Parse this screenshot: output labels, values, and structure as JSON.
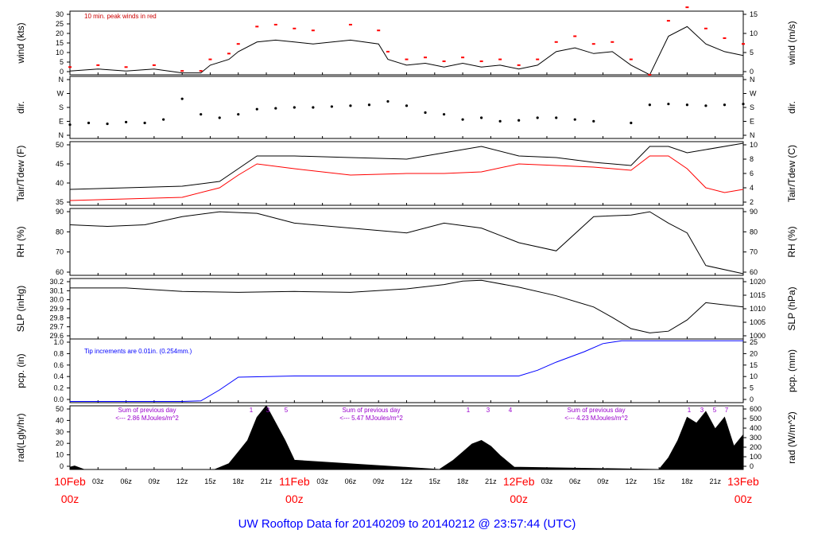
{
  "colors": {
    "frame": "#000000",
    "peak": "#ff0000",
    "dewpoint": "#ff0000",
    "precip": "#0000ff",
    "annotation_purple": "#9900cc",
    "time_red": "#ff0000",
    "footer_blue": "#0000ff",
    "note_red": "#cc0000"
  },
  "footer_title": "UW Rooftop Data for 20140209  to  20140212 @ 23:57:44  (UTC)",
  "time_axis": {
    "hour_ticks": [
      "03z",
      "06z",
      "09z",
      "12z",
      "15z",
      "18z",
      "21z",
      "03z",
      "06z",
      "09z",
      "12z",
      "15z",
      "18z",
      "21z",
      "03z",
      "06z",
      "09z",
      "12z",
      "15z",
      "18z",
      "21z"
    ],
    "day_labels": [
      {
        "date": "10Feb",
        "hour": "00z"
      },
      {
        "date": "11Feb",
        "hour": "00z"
      },
      {
        "date": "12Feb",
        "hour": "00z"
      },
      {
        "date": "13Feb",
        "hour": "00z"
      }
    ]
  },
  "chart_data": [
    {
      "type": "line",
      "panel": "wind",
      "ylabel_left": "wind (kts)",
      "ylabel_right": "wind (m/s)",
      "yticks_left": [
        "0",
        "5",
        "10",
        "15",
        "20",
        "25",
        "30"
      ],
      "yticks_right": [
        "0",
        "5",
        "10",
        "15"
      ],
      "ylim": [
        0,
        33
      ],
      "annotation": "10 min. peak winds in red",
      "series": [
        {
          "name": "wind",
          "color": "#000000",
          "x_hours": [
            0,
            3,
            6,
            9,
            12,
            14,
            15,
            17,
            18,
            20,
            22,
            24,
            26,
            30,
            33,
            34,
            36,
            38,
            40,
            42,
            44,
            46,
            48,
            50,
            52,
            54,
            56,
            58,
            60,
            62,
            64,
            66,
            68,
            70,
            72
          ],
          "values": [
            2,
            3,
            2,
            3,
            1,
            1,
            5,
            8,
            12,
            17,
            18,
            17,
            16,
            18,
            16,
            8,
            5,
            6,
            4,
            6,
            4,
            5,
            3,
            5,
            12,
            14,
            11,
            12,
            5,
            0,
            20,
            25,
            16,
            12,
            10
          ]
        },
        {
          "name": "peak",
          "color": "#ff0000",
          "x_hours": [
            0,
            3,
            6,
            9,
            12,
            14,
            15,
            17,
            18,
            20,
            22,
            24,
            26,
            30,
            33,
            34,
            36,
            38,
            40,
            42,
            44,
            46,
            48,
            50,
            52,
            54,
            56,
            58,
            60,
            62,
            64,
            66,
            68,
            70,
            72
          ],
          "values": [
            4,
            5,
            4,
            5,
            2,
            2,
            8,
            11,
            16,
            25,
            26,
            24,
            23,
            26,
            23,
            12,
            8,
            9,
            7,
            9,
            7,
            8,
            5,
            8,
            17,
            20,
            16,
            17,
            8,
            0,
            28,
            35,
            24,
            19,
            16
          ]
        }
      ]
    },
    {
      "type": "scatter",
      "panel": "direction",
      "ylabel_left": "dir.",
      "ylabel_right": "dir.",
      "yticks_left": [
        "N",
        "E",
        "S",
        "W",
        "N"
      ],
      "yticks_right": [
        "N",
        "E",
        "S",
        "W",
        "N"
      ],
      "ylim": [
        0,
        360
      ],
      "x_hours": [
        0,
        2,
        4,
        6,
        8,
        10,
        12,
        14,
        16,
        18,
        20,
        22,
        24,
        26,
        28,
        30,
        32,
        34,
        36,
        38,
        40,
        42,
        44,
        46,
        48,
        50,
        52,
        54,
        56,
        60,
        62,
        64,
        66,
        68,
        70,
        72
      ],
      "values": [
        80,
        90,
        85,
        95,
        90,
        110,
        230,
        140,
        120,
        140,
        170,
        175,
        180,
        180,
        185,
        190,
        195,
        215,
        190,
        150,
        140,
        110,
        120,
        100,
        105,
        120,
        120,
        110,
        100,
        90,
        195,
        200,
        195,
        190,
        195,
        200
      ]
    },
    {
      "type": "line",
      "panel": "temperature",
      "ylabel_left": "Tair/Tdew (F)",
      "ylabel_right": "Tair/Tdew (C)",
      "yticks_left": [
        "35",
        "40",
        "45",
        "50"
      ],
      "yticks_right": [
        "2",
        "4",
        "6",
        "8",
        "10"
      ],
      "ylim": [
        32.5,
        52.5
      ],
      "series": [
        {
          "name": "Tair",
          "color": "#000000",
          "x_hours": [
            0,
            6,
            12,
            16,
            18,
            20,
            24,
            30,
            36,
            40,
            44,
            48,
            52,
            56,
            60,
            62,
            64,
            66,
            68,
            72
          ],
          "values": [
            37.5,
            38,
            38.5,
            40,
            44,
            48,
            48,
            47.5,
            47,
            49,
            51,
            48,
            47.5,
            46,
            45,
            51,
            51,
            49,
            50,
            52
          ]
        },
        {
          "name": "Tdew",
          "color": "#ff0000",
          "x_hours": [
            0,
            6,
            12,
            16,
            18,
            20,
            24,
            30,
            36,
            40,
            44,
            48,
            52,
            56,
            60,
            62,
            64,
            66,
            68,
            70,
            72
          ],
          "values": [
            34,
            34.5,
            35,
            38,
            42,
            45.5,
            44,
            42,
            42.5,
            42.5,
            43,
            45.5,
            45,
            44.5,
            43.5,
            48,
            48,
            44,
            38,
            36.5,
            37.5
          ]
        }
      ]
    },
    {
      "type": "line",
      "panel": "rh",
      "ylabel_left": "RH (%)",
      "ylabel_right": "RH (%)",
      "yticks_left": [
        "60",
        "70",
        "80",
        "90"
      ],
      "yticks_right": [
        "60",
        "70",
        "80",
        "90"
      ],
      "ylim": [
        56,
        97
      ],
      "series": [
        {
          "name": "RH",
          "color": "#000000",
          "x_hours": [
            0,
            4,
            8,
            12,
            16,
            20,
            24,
            30,
            36,
            40,
            44,
            48,
            52,
            56,
            60,
            62,
            64,
            66,
            68,
            72
          ],
          "values": [
            87,
            86,
            87,
            92,
            95,
            94,
            88,
            85,
            82,
            88,
            85,
            76,
            71,
            92,
            93,
            95,
            88,
            82,
            62,
            57
          ]
        }
      ]
    },
    {
      "type": "line",
      "panel": "slp",
      "ylabel_left": "SLP (inHg)",
      "ylabel_right": "SLP (hPa)",
      "yticks_left": [
        "29.6",
        "29.7",
        "29.8",
        "29.9",
        "30.0",
        "30.1",
        "30.2"
      ],
      "yticks_right": [
        "1000",
        "1005",
        "1010",
        "1015",
        "1020"
      ],
      "ylim": [
        29.53,
        30.23
      ],
      "series": [
        {
          "name": "SLP",
          "color": "#000000",
          "x_hours": [
            0,
            6,
            12,
            18,
            24,
            30,
            36,
            40,
            42,
            44,
            48,
            52,
            56,
            58,
            60,
            62,
            64,
            66,
            68,
            72
          ],
          "values": [
            30.12,
            30.12,
            30.08,
            30.07,
            30.08,
            30.07,
            30.11,
            30.16,
            30.2,
            30.21,
            30.13,
            30.03,
            29.9,
            29.78,
            29.65,
            29.6,
            29.62,
            29.75,
            29.95,
            29.9
          ]
        }
      ]
    },
    {
      "type": "line",
      "panel": "precip",
      "ylabel_left": "pcp. (in)",
      "ylabel_right": "pcp. (mm)",
      "yticks_left": [
        "0.0",
        "0.2",
        "0.4",
        "0.6",
        "0.8",
        "1.0"
      ],
      "yticks_right": [
        "0",
        "5",
        "10",
        "15",
        "20",
        "25"
      ],
      "ylim": [
        -0.02,
        1.08
      ],
      "annotation": "Tip increments are 0.01in. (0.254mm.)",
      "series": [
        {
          "name": "precip",
          "color": "#0000ff",
          "x_hours": [
            0,
            12,
            14,
            16,
            18,
            24,
            42,
            48,
            50,
            52,
            55,
            57,
            59,
            60,
            72
          ],
          "values": [
            0,
            0,
            0.01,
            0.2,
            0.42,
            0.44,
            0.44,
            0.44,
            0.54,
            0.68,
            0.86,
            1.0,
            1.05,
            1.05,
            1.05
          ]
        }
      ]
    },
    {
      "type": "area",
      "panel": "radiation",
      "ylabel_left": "rad(Lgly/hr)",
      "ylabel_right": "rad (W/m^2)",
      "yticks_left": [
        "0",
        "10",
        "20",
        "30",
        "40",
        "50"
      ],
      "yticks_right": [
        "0",
        "100",
        "200",
        "300",
        "400",
        "500",
        "600"
      ],
      "ylim": [
        0,
        55
      ],
      "annotations": [
        {
          "line1": "Sum of previous day",
          "line2": "<--- 2.86 MJoules/m^2"
        },
        {
          "line1": "Sum of previous day",
          "line2": "<--- 5.47 MJoules/m^2"
        },
        {
          "line1": "Sum of previous day",
          "line2": "<--- 4.23 MJoules/m^2"
        }
      ],
      "peak_markers": [
        "1",
        "3",
        "5",
        "1",
        "3",
        "4",
        "1",
        "3",
        "5",
        "7"
      ],
      "series": [
        {
          "name": "radiation",
          "color": "#000000",
          "x_hours": [
            0,
            0.5,
            1.5,
            15.5,
            17,
            18,
            19,
            20,
            21,
            22,
            23,
            24,
            39.5,
            41,
            42,
            43,
            44,
            45,
            46,
            47.5,
            63,
            64,
            65,
            66,
            67,
            68,
            69,
            70,
            71,
            72
          ],
          "values": [
            2,
            3,
            0,
            0,
            5,
            15,
            25,
            45,
            55,
            40,
            25,
            8,
            0,
            8,
            15,
            22,
            25,
            20,
            12,
            2,
            0,
            10,
            25,
            45,
            40,
            50,
            35,
            45,
            20,
            30
          ]
        }
      ]
    }
  ]
}
